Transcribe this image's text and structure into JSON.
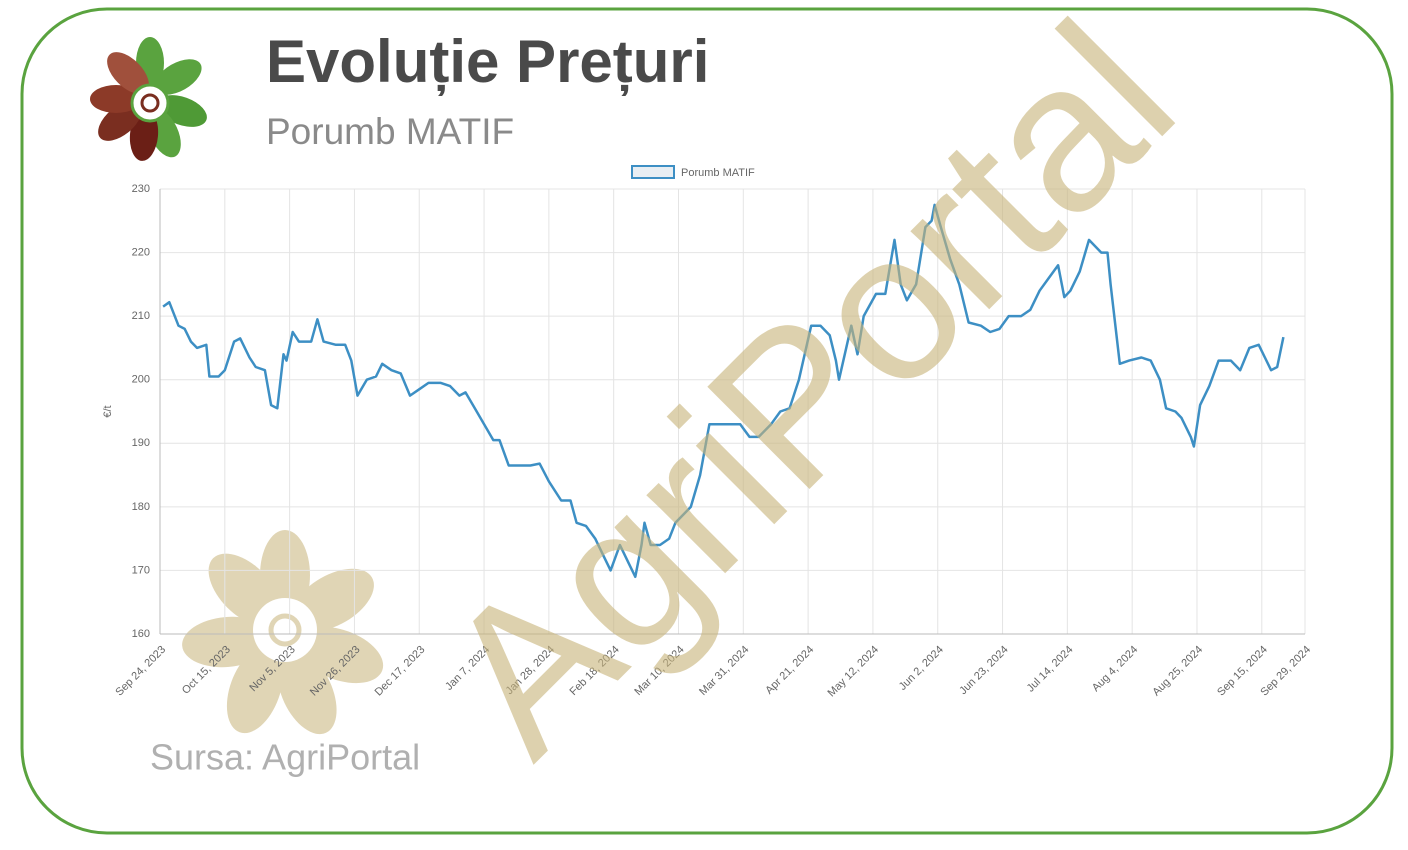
{
  "title": "Evoluție Prețuri",
  "subtitle": "Porumb MATIF",
  "source": "Sursa: AgriPortal",
  "watermark": "AgriPortal",
  "chart_data": {
    "type": "line",
    "ylabel": "€/t",
    "grid": true,
    "legend": "top",
    "xlim": [
      "2023-09-24",
      "2024-09-29"
    ],
    "xticks": [
      {
        "value": "2023-09-24",
        "label": "Sep 24, 2023"
      },
      {
        "value": "2023-10-15",
        "label": "Oct 15, 2023"
      },
      {
        "value": "2023-11-05",
        "label": "Nov 5, 2023"
      },
      {
        "value": "2023-11-26",
        "label": "Nov 26, 2023"
      },
      {
        "value": "2023-12-17",
        "label": "Dec 17, 2023"
      },
      {
        "value": "2024-01-07",
        "label": "Jan 7, 2024"
      },
      {
        "value": "2024-01-28",
        "label": "Jan 28, 2024"
      },
      {
        "value": "2024-02-18",
        "label": "Feb 18, 2024"
      },
      {
        "value": "2024-03-10",
        "label": "Mar 10, 2024"
      },
      {
        "value": "2024-03-31",
        "label": "Mar 31, 2024"
      },
      {
        "value": "2024-04-21",
        "label": "Apr 21, 2024"
      },
      {
        "value": "2024-05-12",
        "label": "May 12, 2024"
      },
      {
        "value": "2024-06-02",
        "label": "Jun 2, 2024"
      },
      {
        "value": "2024-06-23",
        "label": "Jun 23, 2024"
      },
      {
        "value": "2024-07-14",
        "label": "Jul 14, 2024"
      },
      {
        "value": "2024-08-04",
        "label": "Aug 4, 2024"
      },
      {
        "value": "2024-08-25",
        "label": "Aug 25, 2024"
      },
      {
        "value": "2024-09-15",
        "label": "Sep 15, 2024"
      },
      {
        "value": "2024-09-29",
        "label": "Sep 29, 2024"
      }
    ],
    "ylim": [
      160,
      230
    ],
    "yticks": [
      160,
      170,
      180,
      190,
      200,
      210,
      220,
      230
    ],
    "x": [
      "2023-09-25",
      "2023-09-27",
      "2023-09-30",
      "2023-10-02",
      "2023-10-04",
      "2023-10-06",
      "2023-10-09",
      "2023-10-10",
      "2023-10-13",
      "2023-10-15",
      "2023-10-18",
      "2023-10-20",
      "2023-10-23",
      "2023-10-25",
      "2023-10-28",
      "2023-10-30",
      "2023-11-01",
      "2023-11-03",
      "2023-11-04",
      "2023-11-06",
      "2023-11-08",
      "2023-11-12",
      "2023-11-14",
      "2023-11-16",
      "2023-11-20",
      "2023-11-23",
      "2023-11-25",
      "2023-11-27",
      "2023-11-30",
      "2023-12-03",
      "2023-12-05",
      "2023-12-08",
      "2023-12-11",
      "2023-12-14",
      "2023-12-17",
      "2023-12-20",
      "2023-12-24",
      "2023-12-27",
      "2023-12-30",
      "2024-01-01",
      "2024-01-04",
      "2024-01-07",
      "2024-01-10",
      "2024-01-12",
      "2024-01-15",
      "2024-01-19",
      "2024-01-22",
      "2024-01-25",
      "2024-01-28",
      "2024-02-01",
      "2024-02-04",
      "2024-02-06",
      "2024-02-09",
      "2024-02-12",
      "2024-02-15",
      "2024-02-17",
      "2024-02-20",
      "2024-02-23",
      "2024-02-25",
      "2024-02-27",
      "2024-02-28",
      "2024-03-01",
      "2024-03-04",
      "2024-03-07",
      "2024-03-09",
      "2024-03-11",
      "2024-03-14",
      "2024-03-17",
      "2024-03-20",
      "2024-03-23",
      "2024-03-27",
      "2024-03-30",
      "2024-04-02",
      "2024-04-05",
      "2024-04-09",
      "2024-04-12",
      "2024-04-15",
      "2024-04-18",
      "2024-04-22",
      "2024-04-25",
      "2024-04-28",
      "2024-04-30",
      "2024-05-01",
      "2024-05-05",
      "2024-05-07",
      "2024-05-09",
      "2024-05-13",
      "2024-05-16",
      "2024-05-19",
      "2024-05-21",
      "2024-05-23",
      "2024-05-26",
      "2024-05-27",
      "2024-05-29",
      "2024-05-31",
      "2024-06-01",
      "2024-06-03",
      "2024-06-06",
      "2024-06-09",
      "2024-06-12",
      "2024-06-16",
      "2024-06-19",
      "2024-06-22",
      "2024-06-25",
      "2024-06-29",
      "2024-07-02",
      "2024-07-05",
      "2024-07-08",
      "2024-07-11",
      "2024-07-13",
      "2024-07-15",
      "2024-07-18",
      "2024-07-21",
      "2024-07-25",
      "2024-07-27",
      "2024-07-28",
      "2024-07-31",
      "2024-08-03",
      "2024-08-07",
      "2024-08-10",
      "2024-08-13",
      "2024-08-15",
      "2024-08-18",
      "2024-08-20",
      "2024-08-23",
      "2024-08-24",
      "2024-08-26",
      "2024-08-29",
      "2024-09-01",
      "2024-09-05",
      "2024-09-08",
      "2024-09-11",
      "2024-09-14",
      "2024-09-16",
      "2024-09-18",
      "2024-09-20",
      "2024-09-22"
    ],
    "series": [
      {
        "name": "Porumb MATIF",
        "color": "#3d8fc4",
        "values": [
          211.5,
          212.2,
          208.5,
          208,
          206,
          205,
          205.5,
          200.5,
          200.5,
          201.5,
          206,
          206.5,
          203.5,
          202,
          201.5,
          196,
          195.5,
          204,
          203,
          207.5,
          206,
          206,
          209.5,
          206,
          205.5,
          205.5,
          203,
          197.5,
          200,
          200.5,
          202.5,
          201.5,
          201,
          197.5,
          198.5,
          199.5,
          199.5,
          199,
          197.5,
          198,
          195.5,
          193,
          190.5,
          190.5,
          186.5,
          186.5,
          186.5,
          186.8,
          184,
          181,
          181,
          177.5,
          177,
          175,
          172,
          170,
          174,
          171,
          169,
          174,
          177.5,
          174,
          174,
          175,
          177.5,
          178.5,
          180,
          185,
          193,
          193,
          193,
          193,
          191,
          191,
          193,
          195,
          195.5,
          200,
          208.5,
          208.5,
          207,
          203,
          200,
          208.5,
          204,
          210,
          213.5,
          213.5,
          222,
          215,
          212.5,
          215,
          218,
          224,
          225,
          227.5,
          224,
          219,
          215,
          209,
          208.5,
          207.5,
          208,
          210,
          210,
          211,
          214,
          216,
          218,
          213,
          214,
          217,
          222,
          220,
          220,
          215,
          202.5,
          203,
          203.5,
          203,
          200,
          195.5,
          195,
          194,
          191,
          189.5,
          196,
          199,
          203,
          203,
          201.5,
          205,
          205.5,
          203.5,
          201.5,
          202,
          206.7
        ]
      }
    ]
  }
}
